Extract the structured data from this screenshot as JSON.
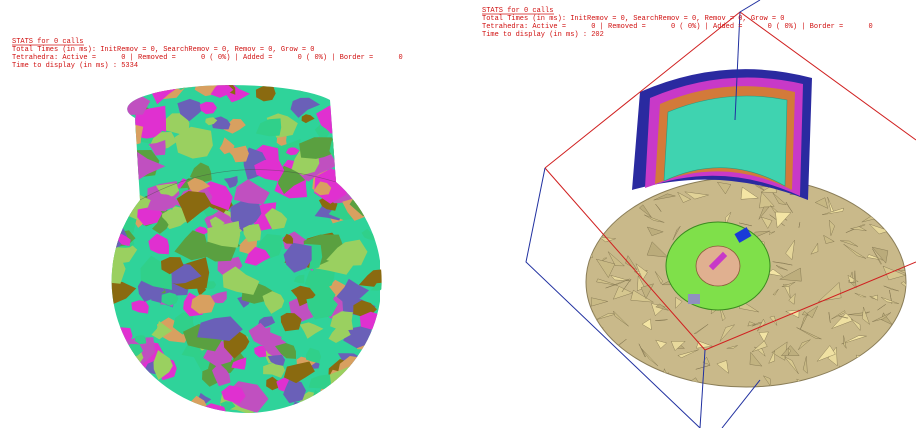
{
  "panels": [
    {
      "lines": [
        "STATS for 0 calls",
        "Total Times (in ms): InitRemov = 0, SearchRemov = 0, Remov = 0, Grow = 0",
        "Tetrahedra: Active =      0 | Removed =      0 ( 0%) | Added =      0 ( 0%) | Border =      0",
        "Time to display (in ms) : 5334"
      ]
    },
    {
      "lines": [
        "STATS for 0 calls",
        "Total Times (in ms): InitRemov = 0, SearchRemov = 0, Remov = 0, Grow = 0",
        "Tetrahedra: Active =      0 | Removed =      0 ( 0%) | Added =      0 ( 0%) | Border =      0",
        "Time to display (in ms) : 202"
      ]
    }
  ]
}
